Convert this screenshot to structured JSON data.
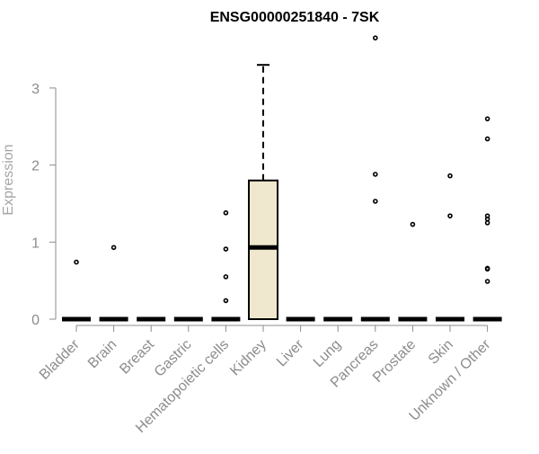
{
  "chart_data": {
    "type": "box",
    "title": "ENSG00000251840 - 7SK",
    "xlabel": "",
    "ylabel": "Expression",
    "ylim": [
      0,
      3.7
    ],
    "yticks": [
      0,
      1,
      2,
      3
    ],
    "grid": false,
    "categories": [
      "Bladder",
      "Brain",
      "Breast",
      "Gastric",
      "Hematopoietic cells",
      "Kidney",
      "Liver",
      "Lung",
      "Pancreas",
      "Prostate",
      "Skin",
      "Unknown / Other"
    ],
    "boxes": [
      {
        "category": "Bladder",
        "q1": 0,
        "median": 0,
        "q3": 0,
        "whisker_low": 0,
        "whisker_high": 0,
        "outliers": [
          0.74
        ]
      },
      {
        "category": "Brain",
        "q1": 0,
        "median": 0,
        "q3": 0,
        "whisker_low": 0,
        "whisker_high": 0,
        "outliers": [
          0.93
        ]
      },
      {
        "category": "Breast",
        "q1": 0,
        "median": 0,
        "q3": 0,
        "whisker_low": 0,
        "whisker_high": 0,
        "outliers": []
      },
      {
        "category": "Gastric",
        "q1": 0,
        "median": 0,
        "q3": 0,
        "whisker_low": 0,
        "whisker_high": 0,
        "outliers": []
      },
      {
        "category": "Hematopoietic cells",
        "q1": 0,
        "median": 0,
        "q3": 0,
        "whisker_low": 0,
        "whisker_high": 0,
        "outliers": [
          0.24,
          0.55,
          0.91,
          1.38
        ]
      },
      {
        "category": "Kidney",
        "q1": 0,
        "median": 0.93,
        "q3": 1.8,
        "whisker_low": 0,
        "whisker_high": 3.3,
        "outliers": []
      },
      {
        "category": "Liver",
        "q1": 0,
        "median": 0,
        "q3": 0,
        "whisker_low": 0,
        "whisker_high": 0,
        "outliers": []
      },
      {
        "category": "Lung",
        "q1": 0,
        "median": 0,
        "q3": 0,
        "whisker_low": 0,
        "whisker_high": 0,
        "outliers": []
      },
      {
        "category": "Pancreas",
        "q1": 0,
        "median": 0,
        "q3": 0,
        "whisker_low": 0,
        "whisker_high": 0,
        "outliers": [
          1.53,
          1.88,
          3.65
        ]
      },
      {
        "category": "Prostate",
        "q1": 0,
        "median": 0,
        "q3": 0,
        "whisker_low": 0,
        "whisker_high": 0,
        "outliers": [
          1.23
        ]
      },
      {
        "category": "Skin",
        "q1": 0,
        "median": 0,
        "q3": 0,
        "whisker_low": 0,
        "whisker_high": 0,
        "outliers": [
          1.34,
          1.86
        ]
      },
      {
        "category": "Unknown / Other",
        "q1": 0,
        "median": 0,
        "q3": 0,
        "whisker_low": 0,
        "whisker_high": 0,
        "outliers": [
          0.49,
          0.65,
          0.66,
          1.25,
          1.3,
          1.34,
          2.34,
          2.6
        ]
      }
    ],
    "colors": {
      "box_fill": "#efe8cf",
      "box_stroke": "#000000",
      "median": "#000000",
      "axis": "#8c8c8c",
      "outlier": "#000000"
    }
  }
}
